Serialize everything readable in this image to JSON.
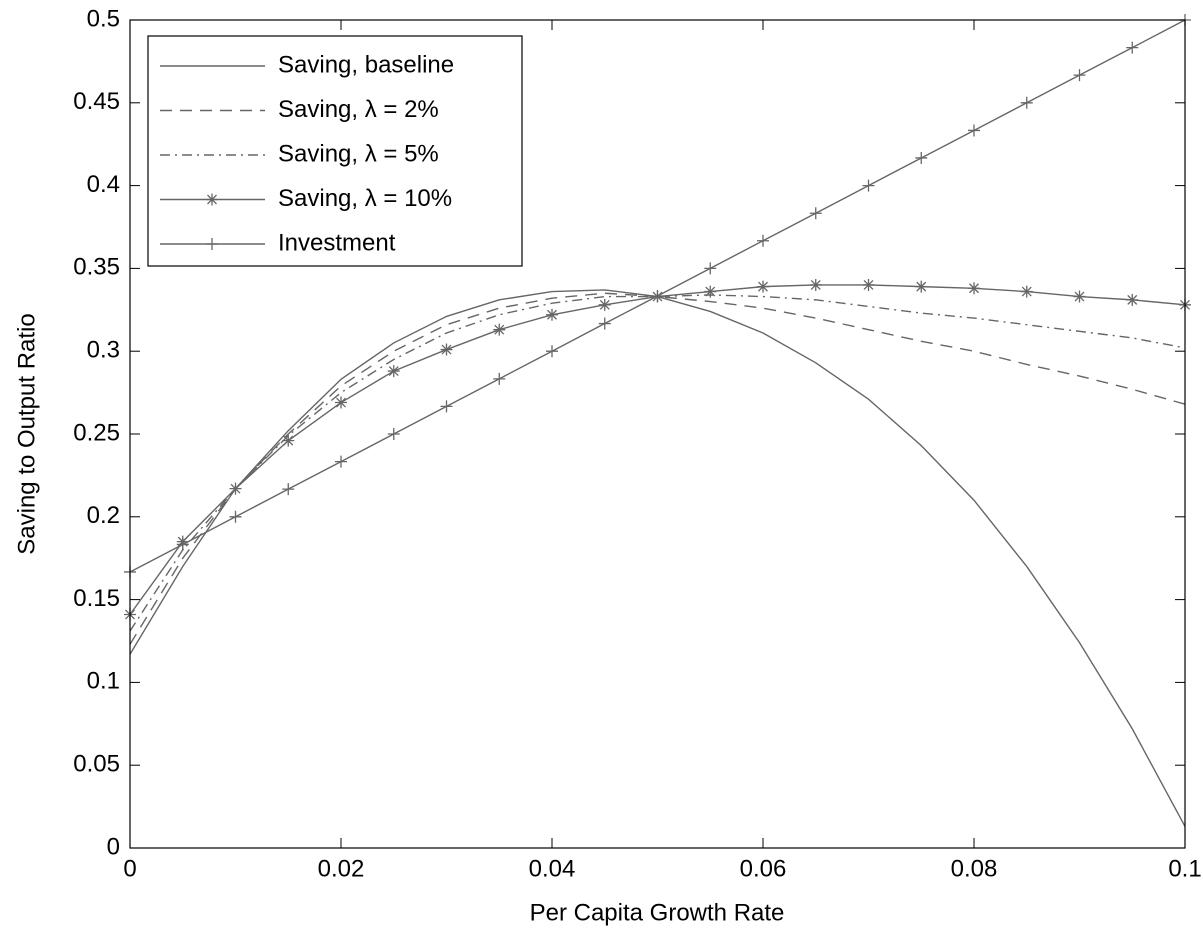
{
  "chart_data": {
    "type": "line",
    "x_label": "Per Capita Growth Rate",
    "y_label": "Saving to Output Ratio",
    "x": [
      0,
      0.005,
      0.01,
      0.015,
      0.02,
      0.025,
      0.03,
      0.035,
      0.04,
      0.045,
      0.05,
      0.055,
      0.06,
      0.065,
      0.07,
      0.075,
      0.08,
      0.085,
      0.09,
      0.095,
      0.1
    ],
    "series": [
      {
        "name": "Saving, baseline",
        "color": "#666666",
        "dash": "solid",
        "marker": "none",
        "values": [
          0.117,
          0.17,
          0.217,
          0.252,
          0.283,
          0.305,
          0.321,
          0.331,
          0.336,
          0.337,
          0.333,
          0.324,
          0.311,
          0.293,
          0.271,
          0.243,
          0.21,
          0.17,
          0.124,
          0.072,
          0.013
        ]
      },
      {
        "name": "Saving, λ = 2%",
        "color": "#666666",
        "dash": "dashed",
        "marker": "none",
        "values": [
          0.123,
          0.175,
          0.217,
          0.25,
          0.279,
          0.3,
          0.316,
          0.326,
          0.332,
          0.335,
          0.333,
          0.33,
          0.326,
          0.32,
          0.313,
          0.306,
          0.3,
          0.292,
          0.285,
          0.277,
          0.268
        ]
      },
      {
        "name": "Saving, λ = 5%",
        "color": "#666666",
        "dash": "dashdot",
        "marker": "none",
        "values": [
          0.131,
          0.18,
          0.217,
          0.249,
          0.275,
          0.295,
          0.311,
          0.322,
          0.329,
          0.333,
          0.333,
          0.334,
          0.333,
          0.331,
          0.327,
          0.323,
          0.32,
          0.316,
          0.312,
          0.308,
          0.302
        ]
      },
      {
        "name": "Saving, λ = 10%",
        "color": "#666666",
        "dash": "solid",
        "marker": "star",
        "values": [
          0.141,
          0.185,
          0.217,
          0.246,
          0.269,
          0.288,
          0.301,
          0.313,
          0.322,
          0.328,
          0.333,
          0.336,
          0.339,
          0.34,
          0.34,
          0.339,
          0.338,
          0.336,
          0.333,
          0.331,
          0.328
        ]
      },
      {
        "name": "Investment",
        "color": "#666666",
        "dash": "solid",
        "marker": "plus",
        "values": [
          0.1667,
          0.1833,
          0.2,
          0.2167,
          0.2333,
          0.25,
          0.2667,
          0.2833,
          0.3,
          0.3167,
          0.3333,
          0.35,
          0.3667,
          0.3833,
          0.4,
          0.4167,
          0.4333,
          0.45,
          0.4667,
          0.4833,
          0.5
        ]
      }
    ],
    "xlim": [
      0,
      0.1
    ],
    "xticks": [
      0,
      0.02,
      0.04,
      0.06,
      0.08,
      0.1
    ],
    "ylim": [
      0,
      0.5
    ],
    "yticks": [
      0,
      0.05,
      0.1,
      0.15,
      0.2,
      0.25,
      0.3,
      0.35,
      0.4,
      0.45,
      0.5
    ],
    "legend": "upper-left"
  }
}
